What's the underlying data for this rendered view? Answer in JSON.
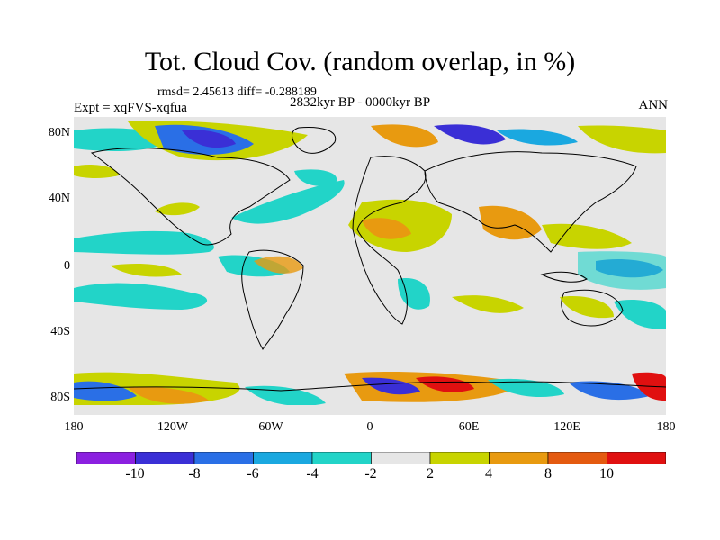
{
  "title": "Tot. Cloud Cov. (random overlap, in %)",
  "stats": "rmsd= 2.45613 diff= -0.288189",
  "experiment": "Expt = xqFVS-xqfua",
  "period": "2832kyr BP - 0000kyr BP",
  "season": "ANN",
  "lat_labels": [
    "80N",
    "40N",
    "0",
    "40S",
    "80S"
  ],
  "lon_labels": [
    "180",
    "120W",
    "60W",
    "0",
    "60E",
    "120E",
    "180"
  ],
  "colorbar": {
    "labels": [
      "-10",
      "-8",
      "-6",
      "-4",
      "-2",
      "2",
      "4",
      "8",
      "10"
    ],
    "colors": [
      "#8b20e0",
      "#3a2fd6",
      "#2a6fe6",
      "#1aa8e0",
      "#22d4c8",
      "#e6e6e6",
      "#c8d400",
      "#e89a10",
      "#e45a10",
      "#e01010"
    ]
  }
}
